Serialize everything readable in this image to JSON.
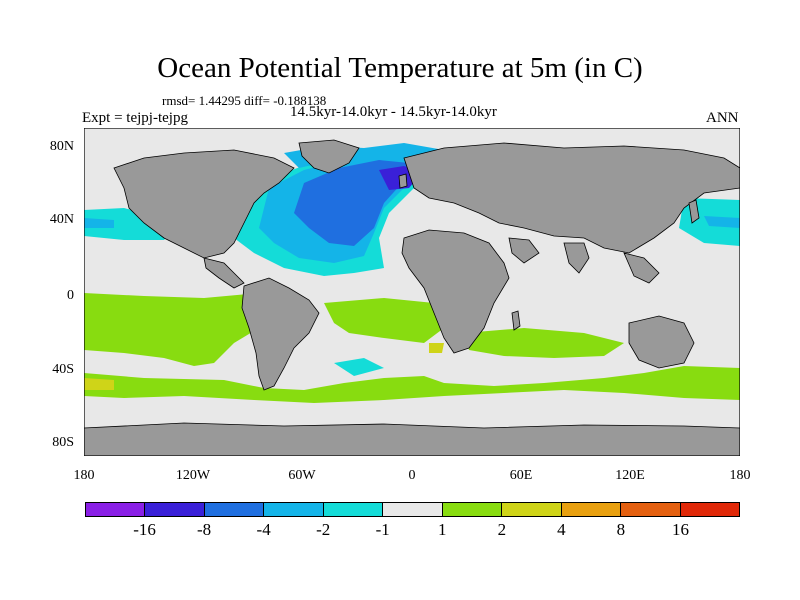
{
  "title": "Ocean Potential Temperature at 5m (in C)",
  "stats": "rmsd= 1.44295 diff= -0.188138",
  "experiment": "Expt = tejpj-tejpg",
  "period": "14.5kyr-14.0kyr - 14.5kyr-14.0kyr",
  "season": "ANN",
  "axes": {
    "y_ticks": [
      "80N",
      "40N",
      "0",
      "40S",
      "80S"
    ],
    "x_ticks": [
      "180",
      "120W",
      "60W",
      "0",
      "60E",
      "120E",
      "180"
    ]
  },
  "colorbar": {
    "colors": [
      "#8a1fe6",
      "#3a20d8",
      "#1f6fe0",
      "#14b4e8",
      "#14dcd8",
      "#e8e8e8",
      "#88dc10",
      "#cfd418",
      "#e8a010",
      "#e46010",
      "#e02808"
    ],
    "labels": [
      "-16",
      "-8",
      "-4",
      "-2",
      "-1",
      "1",
      "2",
      "4",
      "8",
      "16"
    ]
  },
  "colors": {
    "land": "#999999",
    "ocean_neutral": "#e8e8e8"
  }
}
